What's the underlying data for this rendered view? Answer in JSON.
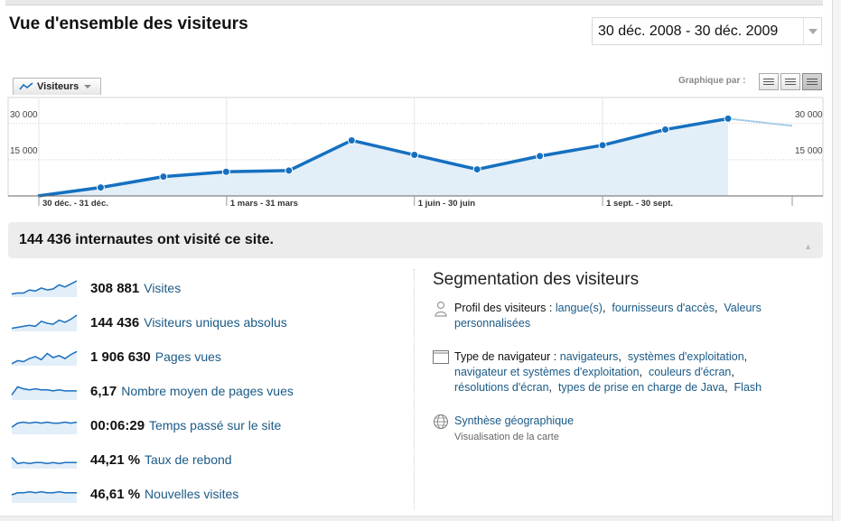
{
  "page": {
    "title": "Vue d'ensemble des visiteurs",
    "date_range": "30 déc. 2008 - 30 déc. 2009"
  },
  "graph_controls": {
    "metric_tab": "Visiteurs",
    "graph_by_label": "Graphique par :"
  },
  "chart_data": {
    "type": "area",
    "series": [
      {
        "name": "Visiteurs",
        "values": [
          0,
          3500,
          8000,
          10000,
          10500,
          23000,
          17000,
          11000,
          16500,
          21000,
          27500,
          32000,
          29000
        ]
      }
    ],
    "y_ticks": [
      "30 000",
      "15 000"
    ],
    "y_tick_values": [
      30000,
      15000
    ],
    "ylim": [
      0,
      40000
    ],
    "x_labels": [
      "30 déc. - 31 déc.",
      "1 mars - 31 mars",
      "1 juin - 30 juin",
      "1 sept. - 30 sept."
    ],
    "grid": true,
    "colors": {
      "line": "#1570c0",
      "fill": "#e2eef8",
      "projection": "#a9cde8"
    }
  },
  "summary": {
    "text": "144 436 internautes ont visité ce site."
  },
  "stats": [
    {
      "value": "308 881",
      "label": "Visites",
      "spark": [
        3,
        4,
        4,
        7,
        6,
        9,
        7,
        8,
        12,
        10,
        13,
        16
      ]
    },
    {
      "value": "144 436",
      "label": "Visiteurs uniques absolus",
      "spark": [
        3,
        4,
        5,
        6,
        5,
        10,
        8,
        7,
        11,
        9,
        12,
        16
      ]
    },
    {
      "value": "1 906 630",
      "label": "Pages vues",
      "spark": [
        2,
        5,
        4,
        7,
        9,
        6,
        12,
        8,
        10,
        7,
        11,
        14
      ]
    },
    {
      "value": "6,17",
      "label": "Nombre moyen de pages vues",
      "spark": [
        5,
        13,
        11,
        10,
        11,
        10,
        10,
        9,
        10,
        9,
        9,
        9
      ]
    },
    {
      "value": "00:06:29",
      "label": "Temps passé sur le site",
      "spark": [
        7,
        11,
        12,
        11,
        12,
        11,
        12,
        11,
        11,
        12,
        11,
        12
      ]
    },
    {
      "value": "44,21 %",
      "label": "Taux de rebond",
      "spark": [
        11,
        5,
        6,
        5,
        6,
        6,
        5,
        6,
        5,
        6,
        6,
        6
      ]
    },
    {
      "value": "46,61 %",
      "label": "Nouvelles visites",
      "spark": [
        8,
        10,
        10,
        11,
        10,
        11,
        10,
        10,
        11,
        10,
        10,
        10
      ]
    }
  ],
  "segmentation": {
    "title": "Segmentation des visiteurs",
    "profile": {
      "label": "Profil des visiteurs :",
      "links": [
        "langue(s)",
        "fournisseurs d'accès",
        "Valeurs personnalisées"
      ]
    },
    "browser": {
      "label": "Type de navigateur :",
      "links": [
        "navigateurs",
        "systèmes d'exploitation",
        "navigateur et systèmes d'exploitation",
        "couleurs d'écran",
        "résolutions d'écran",
        "types de prise en charge de Java",
        "Flash"
      ]
    },
    "geo": {
      "label": "Synthèse géographique",
      "sub": "Visualisation de la carte"
    }
  },
  "icons": {
    "metric_tab": "line-chart-icon",
    "profile": "person-icon",
    "browser": "browser-window-icon",
    "geo": "globe-icon",
    "graph_buttons": [
      "graph-by-day-icon",
      "graph-by-week-icon",
      "graph-by-month-icon"
    ]
  }
}
